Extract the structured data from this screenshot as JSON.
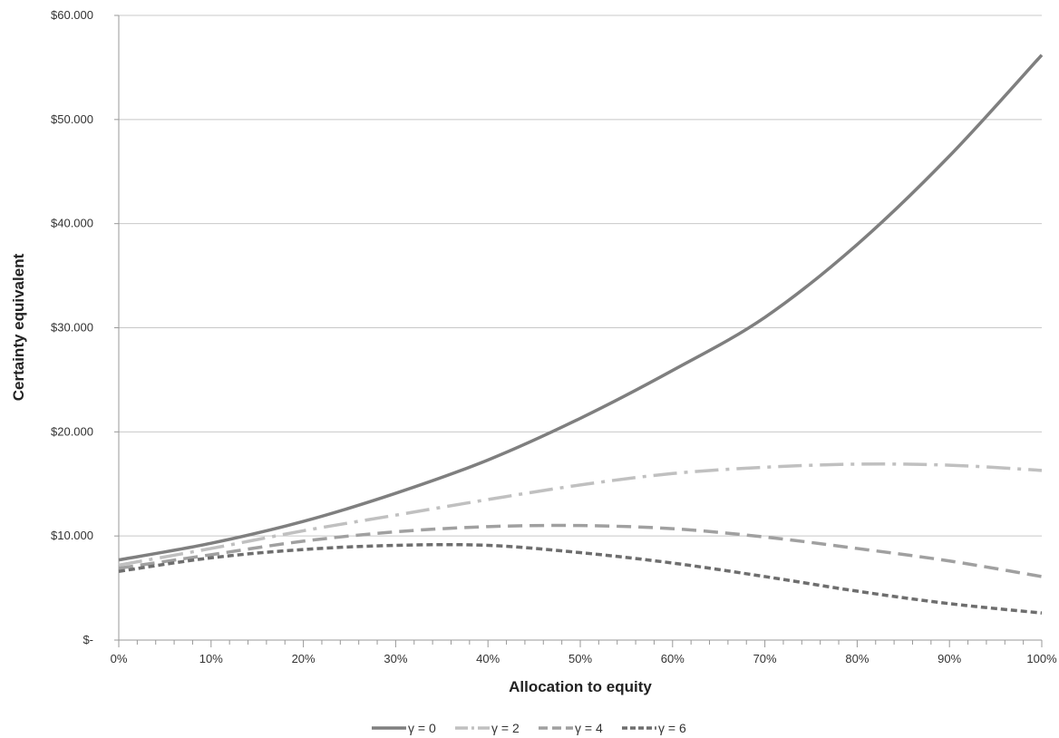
{
  "chart_data": {
    "type": "line",
    "title": "",
    "xlabel": "Allocation to equity",
    "ylabel": "Certainty equivalent",
    "x_tick_labels": [
      "0%",
      "10%",
      "20%",
      "30%",
      "40%",
      "50%",
      "60%",
      "70%",
      "80%",
      "90%",
      "100%"
    ],
    "y_tick_labels": [
      "$-",
      "$10.000",
      "$20.000",
      "$30.000",
      "$40.000",
      "$50.000",
      "$60.000"
    ],
    "xlim": [
      0,
      100
    ],
    "ylim": [
      0,
      60000
    ],
    "grid": "horizontal",
    "legend_position": "bottom",
    "x": [
      0,
      10,
      20,
      30,
      40,
      50,
      60,
      70,
      80,
      90,
      100
    ],
    "series": [
      {
        "name": "γ = 0",
        "color": "#7f7f7f",
        "dash": "solid",
        "values": [
          7700,
          9300,
          11400,
          14100,
          17300,
          21300,
          25900,
          31000,
          38000,
          46500,
          56200
        ]
      },
      {
        "name": "γ = 2",
        "color": "#c0c0c0",
        "dash": "dash-dot",
        "values": [
          7200,
          8800,
          10500,
          12000,
          13500,
          14900,
          16000,
          16600,
          16900,
          16800,
          16300
        ]
      },
      {
        "name": "γ = 4",
        "color": "#a0a0a0",
        "dash": "long-dash",
        "values": [
          6900,
          8200,
          9500,
          10400,
          10900,
          11000,
          10700,
          9900,
          8800,
          7600,
          6100
        ]
      },
      {
        "name": "γ = 6",
        "color": "#6e6e6e",
        "dash": "short-dash",
        "values": [
          6600,
          7900,
          8700,
          9100,
          9100,
          8400,
          7400,
          6100,
          4700,
          3500,
          2600
        ]
      }
    ]
  }
}
